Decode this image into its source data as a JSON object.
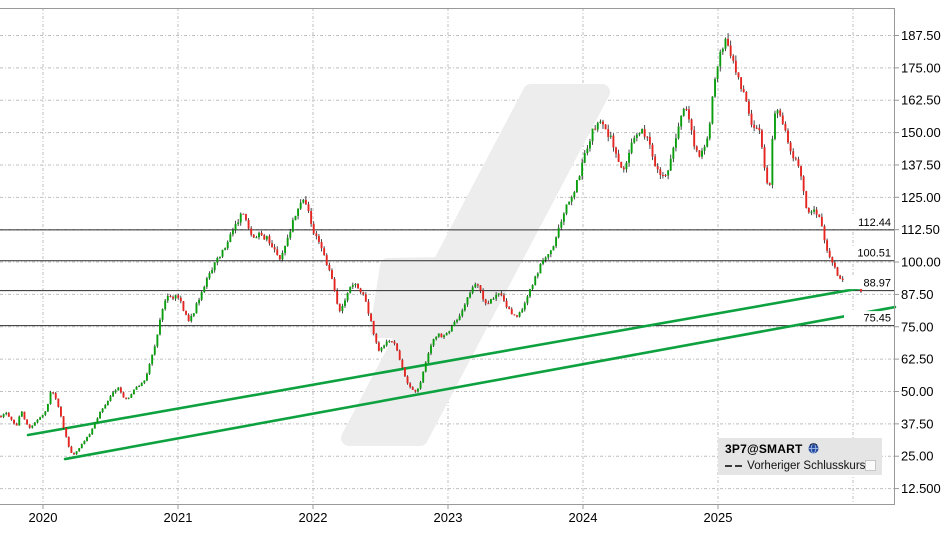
{
  "chart": {
    "legend": {
      "symbol": "3P7@SMART",
      "series_label": "Vorheriger Schlusskurs",
      "checkbox_checked": false
    },
    "colors": {
      "up": "#0A9E0F",
      "down": "#E42520",
      "wick": "#1A1A1A",
      "trendline": "#0DA23F",
      "grid": "#BFBFBF",
      "hline": "#2B2B2B",
      "border": "#999999",
      "watermark": "#EDEDED",
      "legend_bg": "#E5E5E5",
      "text": "#000000"
    },
    "chart_data": {
      "type": "candlestick",
      "interval": "weekly",
      "title": "3P7@SMART",
      "x_axis": {
        "labels": [
          "2020",
          "2021",
          "2022",
          "2023",
          "2024",
          "2025"
        ],
        "first_label_year": 2020,
        "gridline_years": [
          2020,
          2021,
          2022,
          2023,
          2024,
          2025,
          2026
        ],
        "visible_range": [
          2019.68,
          2026.31
        ]
      },
      "y_axis": {
        "tick_labels": [
          "187.50",
          "175.00",
          "162.50",
          "150.00",
          "137.50",
          "125.00",
          "112.50",
          "100.00",
          "87.50",
          "75.00",
          "62.50",
          "50.00",
          "37.50",
          "25.00",
          "12.500"
        ],
        "tick_values": [
          187.5,
          175,
          162.5,
          150,
          137.5,
          125,
          112.5,
          100,
          87.5,
          75,
          62.5,
          50,
          37.5,
          25,
          12.5
        ],
        "step": 12.5
      },
      "horizontal_lines": [
        {
          "value": 112.44,
          "label": "112.44"
        },
        {
          "value": 100.51,
          "label": "100.51"
        },
        {
          "value": 88.97,
          "label": "88.97"
        },
        {
          "value": 75.45,
          "label": "75.45"
        }
      ],
      "trendlines": [
        {
          "t1": 2019.889,
          "p1": 33.2,
          "t2": 2026.067,
          "p2": 90.0
        },
        {
          "t1": 2020.163,
          "p1": 23.9,
          "t2": 2026.311,
          "p2": 82.6
        }
      ],
      "price_path": [
        [
          2019.689,
          40.5
        ],
        [
          2019.726,
          41.5
        ],
        [
          2019.77,
          38.5
        ],
        [
          2019.807,
          37
        ],
        [
          2019.837,
          43
        ],
        [
          2019.867,
          39
        ],
        [
          2019.896,
          35.5
        ],
        [
          2019.933,
          38
        ],
        [
          2019.97,
          39.5
        ],
        [
          2020.0,
          41
        ],
        [
          2020.03,
          44
        ],
        [
          2020.059,
          50.5
        ],
        [
          2020.089,
          48
        ],
        [
          2020.119,
          43
        ],
        [
          2020.148,
          37
        ],
        [
          2020.17,
          33
        ],
        [
          2020.193,
          28
        ],
        [
          2020.215,
          25.5
        ],
        [
          2020.244,
          26.5
        ],
        [
          2020.274,
          28.5
        ],
        [
          2020.311,
          31
        ],
        [
          2020.348,
          34
        ],
        [
          2020.385,
          38
        ],
        [
          2020.422,
          42
        ],
        [
          2020.459,
          45
        ],
        [
          2020.496,
          47.5
        ],
        [
          2020.533,
          50.5
        ],
        [
          2020.563,
          52
        ],
        [
          2020.593,
          48
        ],
        [
          2020.622,
          46.5
        ],
        [
          2020.652,
          49
        ],
        [
          2020.681,
          51
        ],
        [
          2020.711,
          52.5
        ],
        [
          2020.741,
          53.5
        ],
        [
          2020.77,
          57
        ],
        [
          2020.8,
          63
        ],
        [
          2020.83,
          68
        ],
        [
          2020.852,
          74
        ],
        [
          2020.874,
          80
        ],
        [
          2020.904,
          85
        ],
        [
          2020.933,
          87
        ],
        [
          2020.963,
          85.5
        ],
        [
          2020.993,
          87.5
        ],
        [
          2021.022,
          84
        ],
        [
          2021.052,
          80
        ],
        [
          2021.081,
          77
        ],
        [
          2021.111,
          80
        ],
        [
          2021.141,
          84
        ],
        [
          2021.17,
          88
        ],
        [
          2021.2,
          92
        ],
        [
          2021.237,
          96
        ],
        [
          2021.274,
          99.5
        ],
        [
          2021.311,
          103
        ],
        [
          2021.348,
          106
        ],
        [
          2021.385,
          110
        ],
        [
          2021.422,
          114
        ],
        [
          2021.452,
          117
        ],
        [
          2021.481,
          118.5
        ],
        [
          2021.511,
          114
        ],
        [
          2021.541,
          110
        ],
        [
          2021.57,
          108.5
        ],
        [
          2021.6,
          110.5
        ],
        [
          2021.63,
          109
        ],
        [
          2021.659,
          110
        ],
        [
          2021.689,
          107
        ],
        [
          2021.719,
          104
        ],
        [
          2021.748,
          101.5
        ],
        [
          2021.778,
          104
        ],
        [
          2021.807,
          108
        ],
        [
          2021.837,
          113
        ],
        [
          2021.867,
          118
        ],
        [
          2021.896,
          122
        ],
        [
          2021.926,
          124.5
        ],
        [
          2021.956,
          122
        ],
        [
          2021.985,
          115
        ],
        [
          2022.015,
          110
        ],
        [
          2022.044,
          107
        ],
        [
          2022.074,
          103
        ],
        [
          2022.104,
          99
        ],
        [
          2022.133,
          95
        ],
        [
          2022.163,
          89
        ],
        [
          2022.193,
          81
        ],
        [
          2022.222,
          84
        ],
        [
          2022.252,
          88
        ],
        [
          2022.281,
          90
        ],
        [
          2022.311,
          92
        ],
        [
          2022.341,
          90
        ],
        [
          2022.37,
          87
        ],
        [
          2022.4,
          83
        ],
        [
          2022.43,
          77
        ],
        [
          2022.459,
          70
        ],
        [
          2022.489,
          65.5
        ],
        [
          2022.519,
          67
        ],
        [
          2022.548,
          69.5
        ],
        [
          2022.578,
          70.5
        ],
        [
          2022.607,
          68
        ],
        [
          2022.637,
          63
        ],
        [
          2022.667,
          58
        ],
        [
          2022.696,
          54
        ],
        [
          2022.726,
          51
        ],
        [
          2022.756,
          49.5
        ],
        [
          2022.785,
          52
        ],
        [
          2022.815,
          57
        ],
        [
          2022.844,
          63
        ],
        [
          2022.874,
          68
        ],
        [
          2022.904,
          71
        ],
        [
          2022.933,
          72.5
        ],
        [
          2022.963,
          71
        ],
        [
          2022.993,
          72
        ],
        [
          2023.022,
          74
        ],
        [
          2023.052,
          76.5
        ],
        [
          2023.081,
          79
        ],
        [
          2023.111,
          82
        ],
        [
          2023.141,
          85.5
        ],
        [
          2023.17,
          89
        ],
        [
          2023.2,
          91.5
        ],
        [
          2023.23,
          90
        ],
        [
          2023.259,
          86
        ],
        [
          2023.289,
          84
        ],
        [
          2023.319,
          85.5
        ],
        [
          2023.348,
          87
        ],
        [
          2023.378,
          88
        ],
        [
          2023.407,
          86.5
        ],
        [
          2023.437,
          83
        ],
        [
          2023.467,
          80
        ],
        [
          2023.496,
          78.5
        ],
        [
          2023.526,
          80.5
        ],
        [
          2023.556,
          83
        ],
        [
          2023.585,
          86
        ],
        [
          2023.615,
          90
        ],
        [
          2023.644,
          94
        ],
        [
          2023.674,
          97.5
        ],
        [
          2023.704,
          101
        ],
        [
          2023.733,
          103
        ],
        [
          2023.763,
          104.5
        ],
        [
          2023.793,
          108
        ],
        [
          2023.822,
          113
        ],
        [
          2023.852,
          118
        ],
        [
          2023.881,
          122
        ],
        [
          2023.911,
          125
        ],
        [
          2023.941,
          128
        ],
        [
          2023.97,
          133
        ],
        [
          2024.0,
          139
        ],
        [
          2024.03,
          145
        ],
        [
          2024.059,
          149
        ],
        [
          2024.089,
          152.5
        ],
        [
          2024.119,
          154
        ],
        [
          2024.148,
          152
        ],
        [
          2024.178,
          150.5
        ],
        [
          2024.207,
          148
        ],
        [
          2024.237,
          144
        ],
        [
          2024.267,
          139
        ],
        [
          2024.296,
          135
        ],
        [
          2024.326,
          140
        ],
        [
          2024.356,
          145
        ],
        [
          2024.385,
          148
        ],
        [
          2024.415,
          149.5
        ],
        [
          2024.444,
          150.5
        ],
        [
          2024.474,
          148
        ],
        [
          2024.504,
          143
        ],
        [
          2024.533,
          138
        ],
        [
          2024.563,
          135
        ],
        [
          2024.593,
          133.5
        ],
        [
          2024.622,
          135
        ],
        [
          2024.652,
          139
        ],
        [
          2024.681,
          146
        ],
        [
          2024.711,
          153
        ],
        [
          2024.741,
          158
        ],
        [
          2024.77,
          159.5
        ],
        [
          2024.8,
          152
        ],
        [
          2024.83,
          144
        ],
        [
          2024.859,
          141
        ],
        [
          2024.889,
          143
        ],
        [
          2024.919,
          148
        ],
        [
          2024.948,
          158
        ],
        [
          2024.978,
          170
        ],
        [
          2025.007,
          178
        ],
        [
          2025.037,
          183
        ],
        [
          2025.067,
          186
        ],
        [
          2025.096,
          181
        ],
        [
          2025.126,
          176
        ],
        [
          2025.156,
          170
        ],
        [
          2025.185,
          167
        ],
        [
          2025.215,
          160
        ],
        [
          2025.244,
          154
        ],
        [
          2025.274,
          152
        ],
        [
          2025.304,
          150
        ],
        [
          2025.333,
          144
        ],
        [
          2025.356,
          132
        ],
        [
          2025.378,
          126
        ],
        [
          2025.4,
          146
        ],
        [
          2025.422,
          158
        ],
        [
          2025.444,
          160
        ],
        [
          2025.467,
          157
        ],
        [
          2025.496,
          152
        ],
        [
          2025.526,
          146
        ],
        [
          2025.556,
          141
        ],
        [
          2025.585,
          138
        ],
        [
          2025.615,
          134
        ],
        [
          2025.644,
          124
        ],
        [
          2025.674,
          118
        ],
        [
          2025.704,
          120
        ],
        [
          2025.733,
          119
        ],
        [
          2025.763,
          115
        ],
        [
          2025.793,
          108
        ],
        [
          2025.822,
          103
        ],
        [
          2025.852,
          99
        ],
        [
          2025.881,
          96
        ],
        [
          2025.911,
          93.5
        ],
        [
          2025.941,
          91.5
        ],
        [
          2025.97,
          92
        ],
        [
          2026.0,
          93
        ],
        [
          2026.03,
          91
        ],
        [
          2026.059,
          88.5
        ]
      ]
    }
  }
}
